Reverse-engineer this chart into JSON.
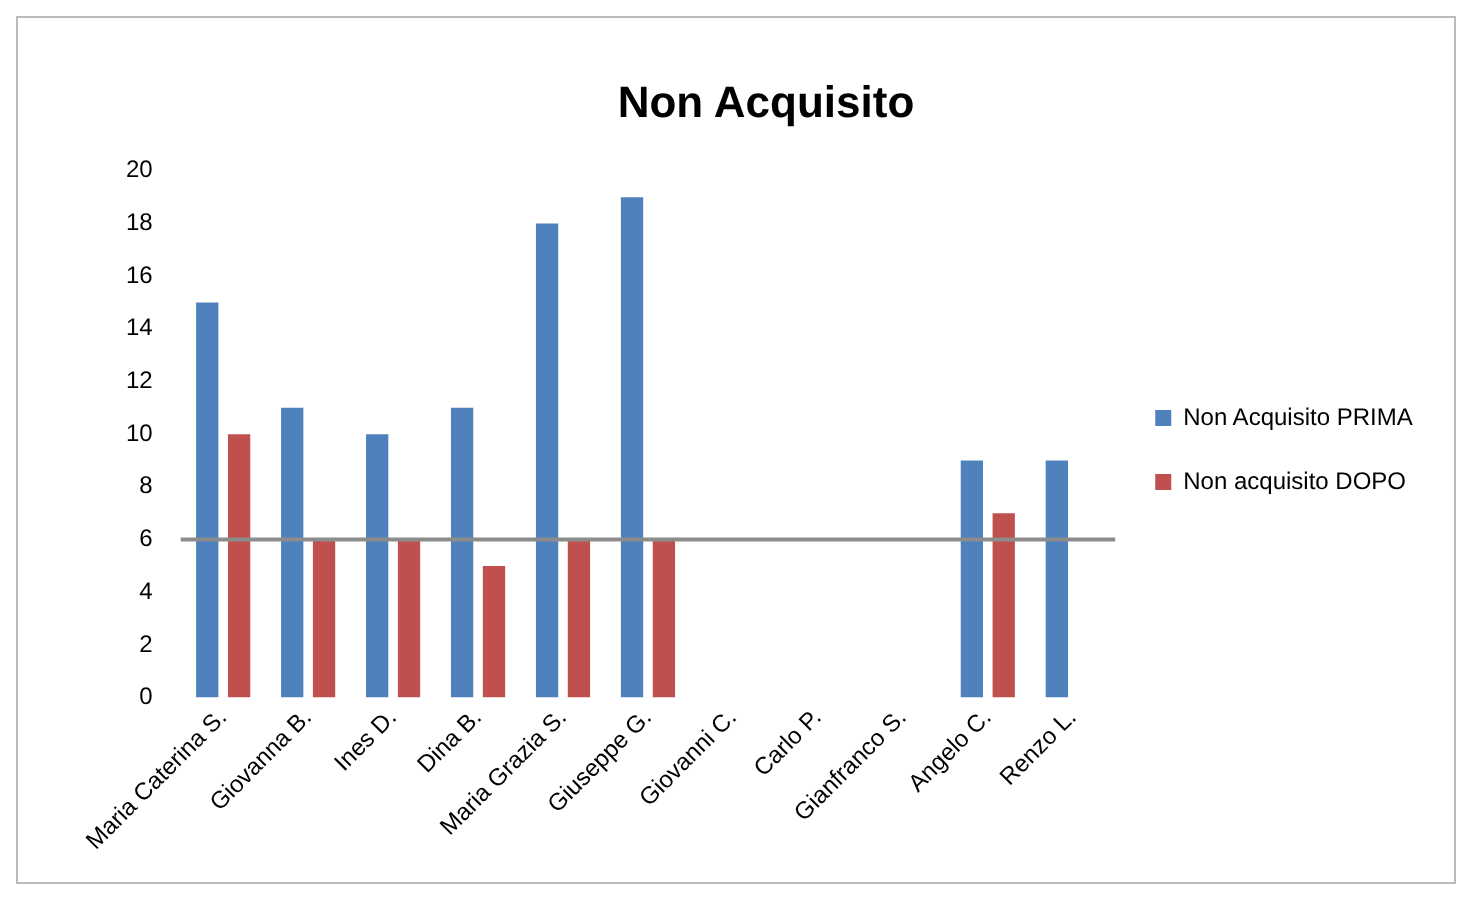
{
  "chart_data": {
    "type": "bar",
    "title": "Non Acquisito",
    "categories": [
      "Maria Caterina S.",
      "Giovanna B.",
      "Ines D.",
      "Dina B.",
      "Maria Grazia S.",
      "Giuseppe G.",
      "Giovanni C.",
      "Carlo P.",
      "Gianfranco S.",
      "Angelo C.",
      "Renzo L."
    ],
    "series": [
      {
        "name": "Non Acquisito PRIMA",
        "color": "#4f81bd",
        "values": [
          15,
          11,
          10,
          11,
          18,
          19,
          null,
          null,
          null,
          9,
          9
        ]
      },
      {
        "name": "Non acquisito DOPO",
        "color": "#c0504d",
        "values": [
          10,
          6,
          6,
          5,
          6,
          6,
          null,
          null,
          null,
          7,
          null
        ]
      }
    ],
    "ylim": [
      0,
      20
    ],
    "yticks": [
      0,
      2,
      4,
      6,
      8,
      10,
      12,
      14,
      16,
      18,
      20
    ],
    "ref_lines": [
      {
        "axis": "y",
        "value": 6,
        "color": "#8c8c8c"
      }
    ],
    "grid": false,
    "legend": "right"
  }
}
